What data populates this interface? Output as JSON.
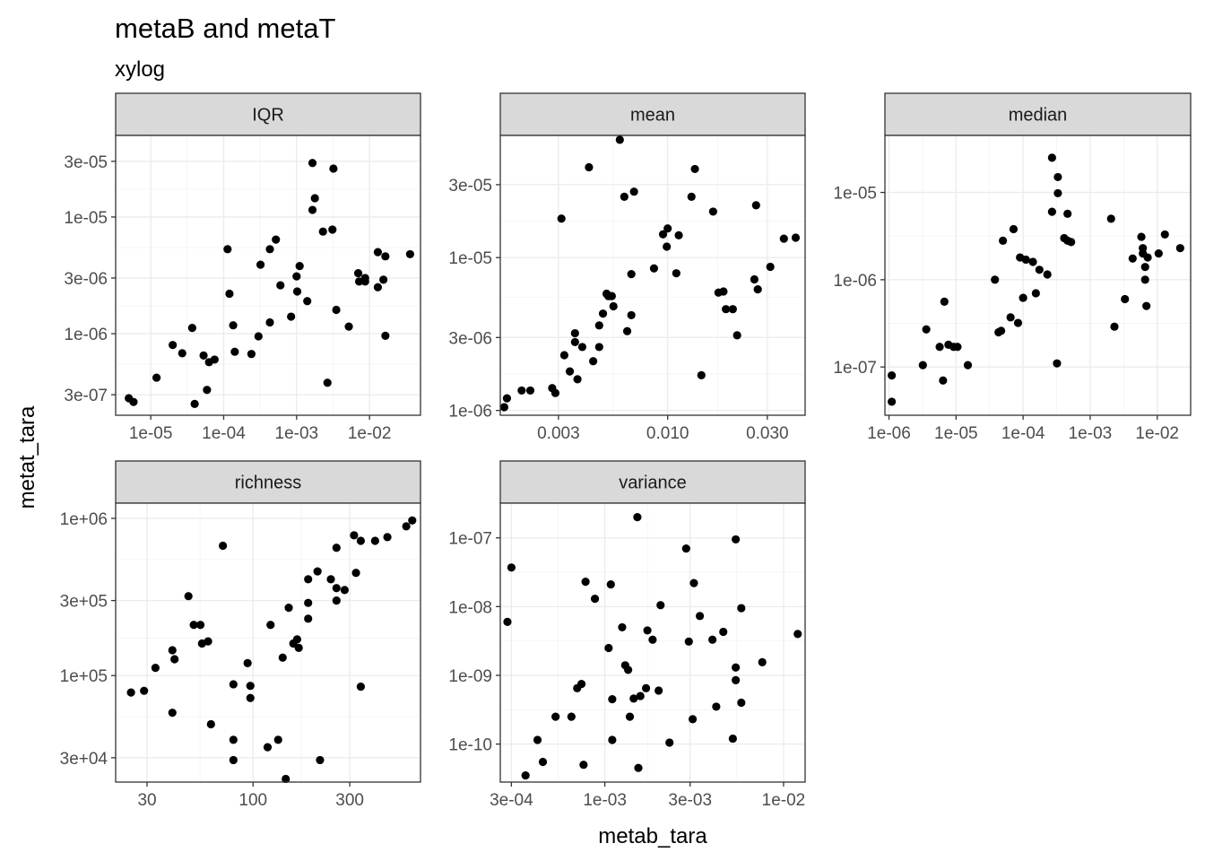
{
  "chart_data": {
    "type": "scatter",
    "title": "metaB and metaT",
    "subtitle": "xylog",
    "xlabel": "metab_tara",
    "ylabel": "metat_tara",
    "x_scale": "log10",
    "y_scale": "log10",
    "grid": true,
    "facets": [
      {
        "label": "IQR",
        "xlim": [
          3.3e-06,
          0.05
        ],
        "ylim": [
          2e-07,
          5e-05
        ],
        "x_ticks": [
          {
            "v": 1e-05,
            "l": "1e-05"
          },
          {
            "v": 0.0001,
            "l": "1e-04"
          },
          {
            "v": 0.001,
            "l": "1e-03"
          },
          {
            "v": 0.01,
            "l": "1e-02"
          }
        ],
        "y_ticks": [
          {
            "v": 3e-07,
            "l": "3e-07"
          },
          {
            "v": 1e-06,
            "l": "1e-06"
          },
          {
            "v": 3e-06,
            "l": "3e-06"
          },
          {
            "v": 1e-05,
            "l": "1e-05"
          },
          {
            "v": 3e-05,
            "l": "3e-05"
          }
        ],
        "points": [
          [
            5e-06,
            2.8e-07
          ],
          [
            5.8e-06,
            2.6e-07
          ],
          [
            1.2e-05,
            4.2e-07
          ],
          [
            2e-05,
            8e-07
          ],
          [
            2.7e-05,
            6.8e-07
          ],
          [
            3.7e-05,
            1.12e-06
          ],
          [
            4e-05,
            2.5e-07
          ],
          [
            5.3e-05,
            6.5e-07
          ],
          [
            5.9e-05,
            3.3e-07
          ],
          [
            6.3e-05,
            5.7e-07
          ],
          [
            7.5e-05,
            6e-07
          ],
          [
            0.000113,
            5.3e-06
          ],
          [
            0.00012,
            2.2e-06
          ],
          [
            0.000135,
            1.18e-06
          ],
          [
            0.000142,
            7e-07
          ],
          [
            0.00024,
            6.7e-07
          ],
          [
            0.0003,
            9.5e-07
          ],
          [
            0.00032,
            3.9e-06
          ],
          [
            0.00043,
            5.3e-06
          ],
          [
            0.00043,
            1.25e-06
          ],
          [
            0.00052,
            6.4e-06
          ],
          [
            0.0006,
            2.6e-06
          ],
          [
            0.00084,
            1.4e-06
          ],
          [
            0.001,
            3.1e-06
          ],
          [
            0.00102,
            2.3e-06
          ],
          [
            0.0011,
            3.8e-06
          ],
          [
            0.0014,
            1.9e-06
          ],
          [
            0.00165,
            1.15e-05
          ],
          [
            0.00165,
            2.9e-05
          ],
          [
            0.00178,
            1.45e-05
          ],
          [
            0.0023,
            7.5e-06
          ],
          [
            0.00265,
            3.8e-07
          ],
          [
            0.0032,
            2.6e-05
          ],
          [
            0.0031,
            7.8e-06
          ],
          [
            0.0035,
            1.6e-06
          ],
          [
            0.0052,
            1.15e-06
          ],
          [
            0.007,
            3.3e-06
          ],
          [
            0.0072,
            2.8e-06
          ],
          [
            0.0087,
            2.8e-06
          ],
          [
            0.0087,
            3e-06
          ],
          [
            0.013,
            2.5e-06
          ],
          [
            0.013,
            5e-06
          ],
          [
            0.0155,
            2.9e-06
          ],
          [
            0.0165,
            4.6e-06
          ],
          [
            0.0165,
            9.6e-07
          ],
          [
            0.036,
            4.8e-06
          ]
        ]
      },
      {
        "label": "mean",
        "xlim": [
          0.00158,
          0.0455
        ],
        "ylim": [
          9.3e-07,
          6.3e-05
        ],
        "x_ticks": [
          {
            "v": 0.003,
            "l": "0.003"
          },
          {
            "v": 0.01,
            "l": "0.010"
          },
          {
            "v": 0.03,
            "l": "0.030"
          }
        ],
        "y_ticks": [
          {
            "v": 1e-06,
            "l": "1e-06"
          },
          {
            "v": 3e-06,
            "l": "3e-06"
          },
          {
            "v": 1e-05,
            "l": "1e-05"
          },
          {
            "v": 3e-05,
            "l": "3e-05"
          }
        ],
        "points": [
          [
            0.00165,
            1.05e-06
          ],
          [
            0.0017,
            1.2e-06
          ],
          [
            0.002,
            1.35e-06
          ],
          [
            0.0022,
            1.35e-06
          ],
          [
            0.0028,
            1.4e-06
          ],
          [
            0.0029,
            1.3e-06
          ],
          [
            0.0031,
            1.8e-05
          ],
          [
            0.0032,
            2.3e-06
          ],
          [
            0.0034,
            1.8e-06
          ],
          [
            0.0036,
            2.8e-06
          ],
          [
            0.0036,
            3.2e-06
          ],
          [
            0.0037,
            1.6e-06
          ],
          [
            0.0039,
            2.6e-06
          ],
          [
            0.0042,
            3.9e-05
          ],
          [
            0.0044,
            2.1e-06
          ],
          [
            0.0047,
            2.6e-06
          ],
          [
            0.0047,
            3.6e-06
          ],
          [
            0.0049,
            4.3e-06
          ],
          [
            0.0051,
            5.8e-06
          ],
          [
            0.0052,
            5.6e-06
          ],
          [
            0.0054,
            5.6e-06
          ],
          [
            0.0055,
            4.8e-06
          ],
          [
            0.0059,
            5.9e-05
          ],
          [
            0.0062,
            2.5e-05
          ],
          [
            0.0064,
            3.3e-06
          ],
          [
            0.0067,
            7.8e-06
          ],
          [
            0.0067,
            4.2e-06
          ],
          [
            0.0069,
            2.7e-05
          ],
          [
            0.0086,
            8.5e-06
          ],
          [
            0.0095,
            1.42e-05
          ],
          [
            0.0099,
            1.18e-05
          ],
          [
            0.01,
            1.55e-05
          ],
          [
            0.011,
            7.9e-06
          ],
          [
            0.0113,
            1.4e-05
          ],
          [
            0.013,
            2.5e-05
          ],
          [
            0.0135,
            3.8e-05
          ],
          [
            0.0145,
            1.7e-06
          ],
          [
            0.0165,
            2e-05
          ],
          [
            0.0175,
            5.9e-06
          ],
          [
            0.0185,
            6e-06
          ],
          [
            0.019,
            4.6e-06
          ],
          [
            0.0205,
            4.6e-06
          ],
          [
            0.0215,
            3.1e-06
          ],
          [
            0.026,
            7.2e-06
          ],
          [
            0.0265,
            2.2e-05
          ],
          [
            0.027,
            6.2e-06
          ],
          [
            0.031,
            8.7e-06
          ],
          [
            0.036,
            1.33e-05
          ],
          [
            0.041,
            1.35e-05
          ]
        ]
      },
      {
        "label": "median",
        "xlim": [
          8.7e-07,
          0.0315
        ],
        "ylim": [
          2.8e-08,
          4.5e-05
        ],
        "x_ticks": [
          {
            "v": 1e-06,
            "l": "1e-06"
          },
          {
            "v": 1e-05,
            "l": "1e-05"
          },
          {
            "v": 0.0001,
            "l": "1e-04"
          },
          {
            "v": 0.001,
            "l": "1e-03"
          },
          {
            "v": 0.01,
            "l": "1e-02"
          }
        ],
        "y_ticks": [
          {
            "v": 1e-07,
            "l": "1e-07"
          },
          {
            "v": 1e-06,
            "l": "1e-06"
          },
          {
            "v": 1e-05,
            "l": "1e-05"
          }
        ],
        "points": [
          [
            1.1e-06,
            4e-08
          ],
          [
            1.1e-06,
            8e-08
          ],
          [
            3.2e-06,
            1.05e-07
          ],
          [
            3.6e-06,
            2.7e-07
          ],
          [
            5.7e-06,
            1.7e-07
          ],
          [
            6.4e-06,
            7e-08
          ],
          [
            6.7e-06,
            5.6e-07
          ],
          [
            7.7e-06,
            1.8e-07
          ],
          [
            9.2e-06,
            1.7e-07
          ],
          [
            1.05e-05,
            1.7e-07
          ],
          [
            1.5e-05,
            1.05e-07
          ],
          [
            3.8e-05,
            1e-06
          ],
          [
            4.3e-05,
            2.5e-07
          ],
          [
            4.7e-05,
            2.6e-07
          ],
          [
            5e-05,
            2.8e-06
          ],
          [
            6.5e-05,
            3.7e-07
          ],
          [
            7.2e-05,
            3.8e-06
          ],
          [
            8.4e-05,
            3.2e-07
          ],
          [
            9e-05,
            1.8e-06
          ],
          [
            0.0001,
            6.2e-07
          ],
          [
            0.00011,
            1.7e-06
          ],
          [
            0.00014,
            1.6e-06
          ],
          [
            0.000155,
            7e-07
          ],
          [
            0.000175,
            1.3e-06
          ],
          [
            0.00023,
            1.15e-06
          ],
          [
            0.00027,
            6e-06
          ],
          [
            0.00027,
            2.5e-05
          ],
          [
            0.00032,
            1.1e-07
          ],
          [
            0.00033,
            1.5e-05
          ],
          [
            0.00033,
            9.8e-06
          ],
          [
            0.00041,
            3e-06
          ],
          [
            0.00046,
            5.7e-06
          ],
          [
            0.00046,
            2.8e-06
          ],
          [
            0.00052,
            2.7e-06
          ],
          [
            0.00205,
            5e-06
          ],
          [
            0.0023,
            2.9e-07
          ],
          [
            0.0033,
            6e-07
          ],
          [
            0.0043,
            1.75e-06
          ],
          [
            0.0058,
            3.1e-06
          ],
          [
            0.0061,
            2.3e-06
          ],
          [
            0.0061,
            2e-06
          ],
          [
            0.0066,
            1e-06
          ],
          [
            0.0066,
            1.4e-06
          ],
          [
            0.0069,
            5e-07
          ],
          [
            0.0072,
            1.8e-06
          ],
          [
            0.0105,
            2e-06
          ],
          [
            0.013,
            3.3e-06
          ],
          [
            0.022,
            2.3e-06
          ]
        ]
      },
      {
        "label": "richness",
        "xlim": [
          21,
          670
        ],
        "ylim": [
          21000.0,
          1250000.0
        ],
        "x_ticks": [
          {
            "v": 30,
            "l": "30"
          },
          {
            "v": 100,
            "l": "100"
          },
          {
            "v": 300,
            "l": "300"
          }
        ],
        "y_ticks": [
          {
            "v": 30000.0,
            "l": "3e+04"
          },
          {
            "v": 100000.0,
            "l": "1e+05"
          },
          {
            "v": 300000.0,
            "l": "3e+05"
          },
          {
            "v": 1000000.0,
            "l": "1e+06"
          }
        ],
        "points": [
          [
            25,
            78000.0
          ],
          [
            29,
            80000.0
          ],
          [
            33,
            112000.0
          ],
          [
            40,
            145000.0
          ],
          [
            40,
            58000.0
          ],
          [
            41,
            127000.0
          ],
          [
            48,
            320000.0
          ],
          [
            51,
            210000.0
          ],
          [
            55,
            210000.0
          ],
          [
            56,
            160000.0
          ],
          [
            60,
            165000.0
          ],
          [
            62,
            49000.0
          ],
          [
            71,
            670000.0
          ],
          [
            80,
            88000.0
          ],
          [
            80,
            39000.0
          ],
          [
            80,
            29000.0
          ],
          [
            94,
            120000.0
          ],
          [
            97,
            72000.0
          ],
          [
            97,
            86000.0
          ],
          [
            118,
            35000.0
          ],
          [
            122,
            210000.0
          ],
          [
            133,
            39000.0
          ],
          [
            140,
            130000.0
          ],
          [
            145,
            22000.0
          ],
          [
            150,
            270000.0
          ],
          [
            158,
            160000.0
          ],
          [
            165,
            170000.0
          ],
          [
            168,
            150000.0
          ],
          [
            187,
            230000.0
          ],
          [
            187,
            290000.0
          ],
          [
            187,
            410000.0
          ],
          [
            208,
            460000.0
          ],
          [
            214,
            29000.0
          ],
          [
            242,
            410000.0
          ],
          [
            258,
            650000.0
          ],
          [
            258,
            360000.0
          ],
          [
            258,
            300000.0
          ],
          [
            283,
            350000.0
          ],
          [
            315,
            780000.0
          ],
          [
            322,
            450000.0
          ],
          [
            340,
            85000.0
          ],
          [
            340,
            720000.0
          ],
          [
            400,
            720000.0
          ],
          [
            460,
            760000.0
          ],
          [
            570,
            890000.0
          ],
          [
            610,
            970000.0
          ]
        ]
      },
      {
        "label": "variance",
        "xlim": [
          0.00026,
          0.0132
        ],
        "ylim": [
          2.8e-11,
          3.2e-07
        ],
        "x_ticks": [
          {
            "v": 0.0003,
            "l": "3e-04"
          },
          {
            "v": 0.001,
            "l": "1e-03"
          },
          {
            "v": 0.003,
            "l": "3e-03"
          },
          {
            "v": 0.01,
            "l": "1e-02"
          }
        ],
        "y_ticks": [
          {
            "v": 1e-10,
            "l": "1e-10"
          },
          {
            "v": 1e-09,
            "l": "1e-09"
          },
          {
            "v": 1e-08,
            "l": "1e-08"
          },
          {
            "v": 1e-07,
            "l": "1e-07"
          }
        ],
        "points": [
          [
            0.000285,
            6e-09
          ],
          [
            0.0003,
            3.7e-08
          ],
          [
            0.00036,
            3.5e-11
          ],
          [
            0.00042,
            1.15e-10
          ],
          [
            0.00045,
            5.5e-11
          ],
          [
            0.00053,
            2.5e-10
          ],
          [
            0.00065,
            2.5e-10
          ],
          [
            0.0007,
            6.5e-10
          ],
          [
            0.00074,
            7.5e-10
          ],
          [
            0.00076,
            5e-11
          ],
          [
            0.00078,
            2.3e-08
          ],
          [
            0.00088,
            1.3e-08
          ],
          [
            0.00105,
            2.5e-09
          ],
          [
            0.00108,
            2.1e-08
          ],
          [
            0.0011,
            4.5e-10
          ],
          [
            0.0011,
            1.15e-10
          ],
          [
            0.00125,
            5e-09
          ],
          [
            0.0013,
            1.4e-09
          ],
          [
            0.00135,
            1.2e-09
          ],
          [
            0.00138,
            2.5e-10
          ],
          [
            0.00145,
            4.6e-10
          ],
          [
            0.00152,
            2e-07
          ],
          [
            0.00154,
            4.5e-11
          ],
          [
            0.00158,
            5e-10
          ],
          [
            0.0017,
            6.5e-10
          ],
          [
            0.00173,
            4.5e-09
          ],
          [
            0.00185,
            3.3e-09
          ],
          [
            0.002,
            6e-10
          ],
          [
            0.00205,
            1.05e-08
          ],
          [
            0.0023,
            1.05e-10
          ],
          [
            0.00285,
            7e-08
          ],
          [
            0.00295,
            3.1e-09
          ],
          [
            0.00315,
            2.2e-08
          ],
          [
            0.0031,
            2.3e-10
          ],
          [
            0.0034,
            7.3e-09
          ],
          [
            0.004,
            3.3e-09
          ],
          [
            0.0042,
            3.5e-10
          ],
          [
            0.0046,
            4.3e-09
          ],
          [
            0.0052,
            1.2e-10
          ],
          [
            0.0054,
            9.5e-08
          ],
          [
            0.0054,
            1.3e-09
          ],
          [
            0.0054,
            8.5e-10
          ],
          [
            0.0058,
            9.5e-09
          ],
          [
            0.0058,
            4e-10
          ],
          [
            0.0076,
            1.55e-09
          ],
          [
            0.012,
            4e-09
          ]
        ]
      }
    ]
  }
}
